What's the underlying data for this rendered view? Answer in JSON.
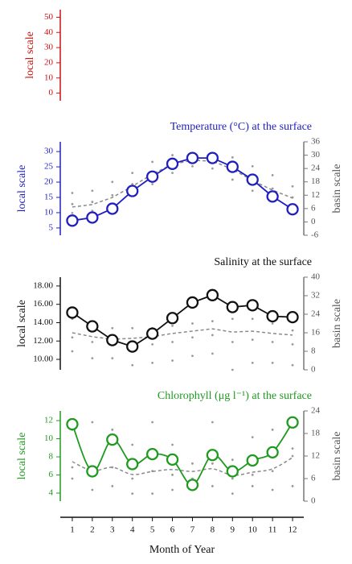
{
  "chart_data": [
    {
      "type": "line",
      "ylabel": "local scale",
      "color": "#cc1111",
      "ylim": [
        -5,
        55
      ],
      "yticks": [
        0,
        10,
        20,
        30,
        40,
        50
      ],
      "series": []
    },
    {
      "type": "line",
      "title": "Temperature (°C) at the surface",
      "ylabel": "local scale",
      "y2label": "basin scale",
      "color": "#1f1fc0",
      "ylim": [
        2.6,
        33.2
      ],
      "yticks": [
        5,
        10,
        15,
        20,
        25,
        30
      ],
      "y2lim": [
        -6,
        36
      ],
      "y2ticks": [
        -6,
        0,
        6,
        12,
        18,
        24,
        30,
        36
      ],
      "series": [
        {
          "style": "dots",
          "axis": "y2",
          "color": "#9a9a9a",
          "x": [
            1,
            1,
            1,
            2,
            2,
            2,
            3,
            3,
            3,
            4,
            4,
            4,
            5,
            5,
            5,
            6,
            6,
            6,
            7,
            7,
            7,
            8,
            8,
            8,
            9,
            9,
            9,
            10,
            10,
            10,
            11,
            11,
            11,
            12,
            12,
            12
          ],
          "values": [
            4,
            8,
            13,
            5,
            9,
            14,
            8,
            12,
            18,
            12,
            17,
            22,
            17,
            22,
            27,
            22,
            26,
            30,
            25,
            28,
            31,
            24,
            28,
            31,
            19,
            24,
            29,
            14,
            19,
            25,
            10,
            15,
            21,
            7,
            11,
            16
          ]
        },
        {
          "style": "dashed",
          "axis": "y2",
          "color": "#8a8a8a",
          "values": [
            6.7,
            7.8,
            11,
            16,
            21.5,
            25.9,
            27.7,
            27.3,
            23.7,
            18.6,
            14.3,
            10.7
          ]
        },
        {
          "style": "markers",
          "color": "#1f1fc0",
          "values": [
            7.4,
            8.4,
            11.3,
            17.1,
            21.8,
            26,
            27.9,
            27.9,
            25,
            20.8,
            15.3,
            11.1
          ]
        }
      ]
    },
    {
      "type": "line",
      "title": "Salinity at the surface",
      "ylabel": "local scale",
      "y2label": "basin scale",
      "color": "#111111",
      "ylim": [
        8.86,
        18.96
      ],
      "yticks": [
        {
          "value": 10,
          "label": "10.00"
        },
        {
          "value": 12,
          "label": "12.00"
        },
        {
          "value": 14,
          "label": "14.00"
        },
        {
          "value": 16,
          "label": "16.00"
        },
        {
          "value": 18,
          "label": "18.00"
        }
      ],
      "y2lim": [
        0,
        40
      ],
      "y2ticks": [
        0,
        8,
        16,
        24,
        32,
        40
      ],
      "series": [
        {
          "style": "dots",
          "axis": "y2",
          "color": "#9a9a9a",
          "x": [
            1,
            1,
            1,
            2,
            2,
            2,
            3,
            3,
            3,
            4,
            4,
            4,
            5,
            5,
            5,
            6,
            6,
            6,
            7,
            7,
            7,
            8,
            8,
            8,
            9,
            9,
            9,
            10,
            10,
            10,
            11,
            11,
            11,
            12,
            12,
            12
          ],
          "values": [
            8,
            14,
            22,
            5,
            12,
            20,
            5,
            12,
            18,
            2,
            10,
            18,
            3,
            11,
            18,
            4,
            12,
            19,
            6,
            14,
            20,
            7,
            15,
            21,
            0,
            12,
            22,
            3,
            13,
            22,
            3,
            12,
            20,
            2,
            11,
            17
          ]
        },
        {
          "style": "dashed",
          "axis": "y2",
          "color": "#8a8a8a",
          "values": [
            16,
            14.3,
            13.2,
            13.6,
            14.3,
            15.7,
            16.7,
            17.7,
            16.3,
            16.7,
            15.7,
            15
          ]
        },
        {
          "style": "markers",
          "color": "#111111",
          "values": [
            15.1,
            13.6,
            12.1,
            11.4,
            12.8,
            14.5,
            16.2,
            17,
            15.7,
            15.9,
            14.7,
            14.6
          ]
        }
      ]
    },
    {
      "type": "line",
      "title": "Chlorophyll (μg l⁻¹) at the surface",
      "ylabel": "local scale",
      "y2label": "basin scale",
      "color": "#1f9a1f",
      "ylim": [
        3.11,
        13.07
      ],
      "yticks": [
        4,
        6,
        8,
        10,
        12
      ],
      "y2lim": [
        0,
        24
      ],
      "y2ticks": [
        0,
        6,
        12,
        18,
        24
      ],
      "xlabel": "Month of Year",
      "x": [
        1,
        2,
        3,
        4,
        5,
        6,
        7,
        8,
        9,
        10,
        11,
        12
      ],
      "xlim": [
        0.4,
        12.56
      ],
      "xticks": [
        1,
        2,
        3,
        4,
        5,
        6,
        7,
        8,
        9,
        10,
        11,
        12
      ],
      "series": [
        {
          "style": "dots",
          "axis": "y2",
          "color": "#9a9a9a",
          "x": [
            1,
            1,
            1,
            2,
            2,
            2,
            3,
            3,
            3,
            4,
            4,
            4,
            5,
            5,
            5,
            6,
            6,
            6,
            7,
            7,
            7,
            8,
            8,
            8,
            9,
            9,
            9,
            10,
            10,
            10,
            11,
            11,
            11,
            12,
            12,
            12
          ],
          "values": [
            6,
            9,
            19,
            3,
            7,
            21,
            4,
            9,
            19,
            2,
            6,
            15,
            2,
            8,
            21,
            3,
            7,
            15,
            4,
            6,
            10,
            4,
            10,
            21,
            2,
            6,
            11,
            4,
            7,
            17,
            3,
            8,
            19,
            4,
            12,
            14
          ]
        },
        {
          "style": "dashed",
          "axis": "y2",
          "color": "#8a8a8a",
          "smooth": true,
          "values": [
            10.5,
            8.1,
            9,
            7.1,
            7.9,
            8.4,
            7.9,
            8.6,
            6.9,
            7.7,
            8.6,
            11.6
          ]
        },
        {
          "style": "markers",
          "color": "#1f9a1f",
          "smooth": true,
          "values": [
            11.6,
            6.4,
            9.9,
            7.2,
            8.3,
            7.7,
            4.9,
            8.2,
            6.4,
            7.6,
            8.5,
            11.8
          ]
        }
      ]
    }
  ]
}
